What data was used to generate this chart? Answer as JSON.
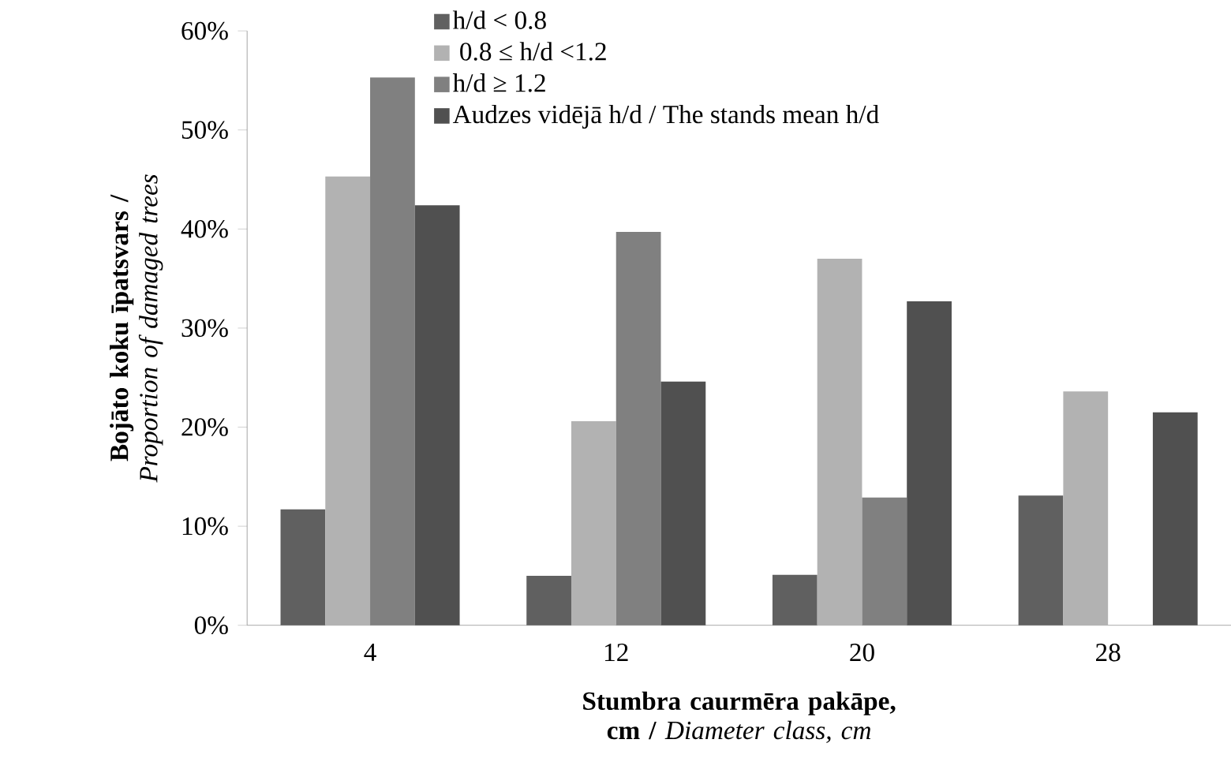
{
  "chart_data": {
    "type": "bar",
    "xlabel": "**Stumbra caurmēra pakāpe, cm /** *Diameter class, cm*",
    "ylabel": "**Bojāto koku īpatsvars /** *Proportion of damaged trees*",
    "categories": [
      "4",
      "12",
      "20",
      "28"
    ],
    "series": [
      {
        "name": "h/d < 0.8",
        "color": "#606060",
        "values": [
          11.7,
          5.0,
          5.1,
          13.1
        ]
      },
      {
        "name": " 0.8 ≤ h/d <1.2",
        "color": "#b2b2b2",
        "values": [
          45.3,
          20.6,
          37.0,
          23.6
        ]
      },
      {
        "name": "h/d ≥ 1.2",
        "color": "#808080",
        "values": [
          55.3,
          39.7,
          12.9,
          null
        ]
      },
      {
        "name": "Audzes vidējā h/d / The stands mean h/d",
        "color": "#505050",
        "values": [
          42.4,
          24.6,
          32.7,
          21.5
        ]
      }
    ],
    "ylim": [
      0,
      60
    ],
    "yticks": [
      {
        "value": 0,
        "label": "0%"
      },
      {
        "value": 10,
        "label": "10%"
      },
      {
        "value": 20,
        "label": "20%"
      },
      {
        "value": 30,
        "label": "30%"
      },
      {
        "value": 40,
        "label": "40%"
      },
      {
        "value": 50,
        "label": "50%"
      },
      {
        "value": 60,
        "label": "60%"
      }
    ],
    "legend": "top",
    "grid": false
  }
}
